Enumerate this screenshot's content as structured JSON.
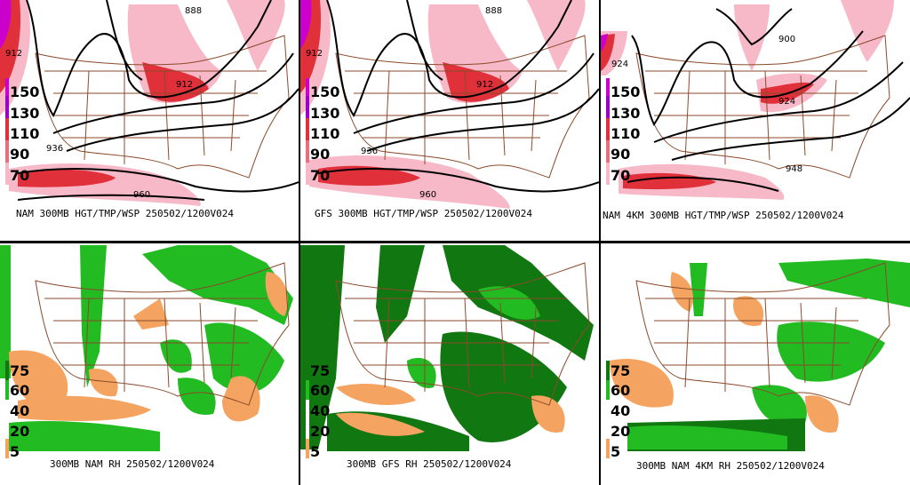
{
  "panels": {
    "top_left": {
      "caption": "NAM 300MB HGT/TMP/WSP 250502/1200V024",
      "contours": [
        "888",
        "912",
        "912",
        "936",
        "960"
      ],
      "legend": [
        "150",
        "130",
        "110",
        "90",
        "70"
      ]
    },
    "top_mid": {
      "caption": "GFS 300MB HGT/TMP/WSP 250502/1200V024",
      "contours": [
        "888",
        "912",
        "912",
        "936",
        "960"
      ],
      "legend": [
        "150",
        "130",
        "110",
        "90",
        "70"
      ]
    },
    "top_right": {
      "caption": "NAM 4KM 300MB HGT/TMP/WSP 250502/1200V024",
      "contours": [
        "900",
        "924",
        "924",
        "948"
      ],
      "legend": [
        "150",
        "130",
        "110",
        "90",
        "70"
      ]
    },
    "bottom_left": {
      "caption": "300MB NAM RH 250502/1200V024",
      "legend": [
        "75",
        "60",
        "40",
        "20",
        "5"
      ]
    },
    "bottom_mid": {
      "caption": "300MB GFS RH 250502/1200V024",
      "legend": [
        "75",
        "60",
        "40",
        "20",
        "5"
      ]
    },
    "bottom_right": {
      "caption": "300MB NAM 4KM RH 250502/1200V024",
      "legend": [
        "75",
        "60",
        "40",
        "20",
        "5"
      ]
    }
  },
  "colors": {
    "wind_light": "#f7b8c8",
    "wind_mid": "#e8707e",
    "wind_strong": "#e0303a",
    "wind_max": "#cc00cc",
    "rh_moist": "#22bb22",
    "rh_very_moist": "#117711",
    "rh_dry": "#f4a460",
    "map_lines": "#8b4a2b",
    "contour": "#000000"
  }
}
